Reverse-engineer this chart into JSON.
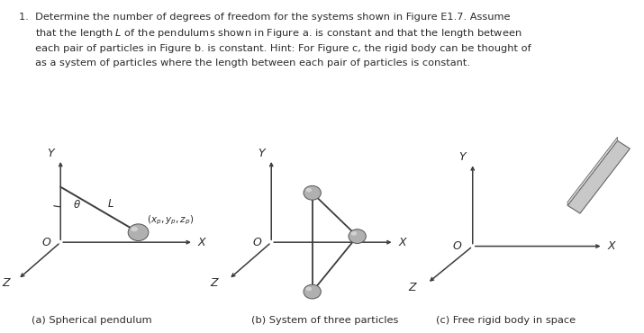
{
  "bg_color": "#ffffff",
  "text_color": "#2b2b2b",
  "axis_color": "#3c3c3c",
  "line_color": "#3c3c3c",
  "sphere_color": "#b0b0b0",
  "sphere_edge": "#555555",
  "rod_face": "#b8b8b8",
  "rod_edge": "#666666",
  "caption_a": "(a) Spherical pendulum",
  "caption_b": "(b) System of three particles",
  "caption_c": "(c) Free rigid body in space",
  "text_line1": "1.  Determine the number of degrees of freedom for the systems shown in Figure E1.7. Assume",
  "text_line2": "     that the length $L$ of the pendulums shown in Figure a. is constant and that the length between",
  "text_line3": "     each pair of particles in Figure b. is constant. Hint: For Figure c, the rigid body can be thought of",
  "text_line4": "     as a system of particles where the length between each pair of particles is constant."
}
